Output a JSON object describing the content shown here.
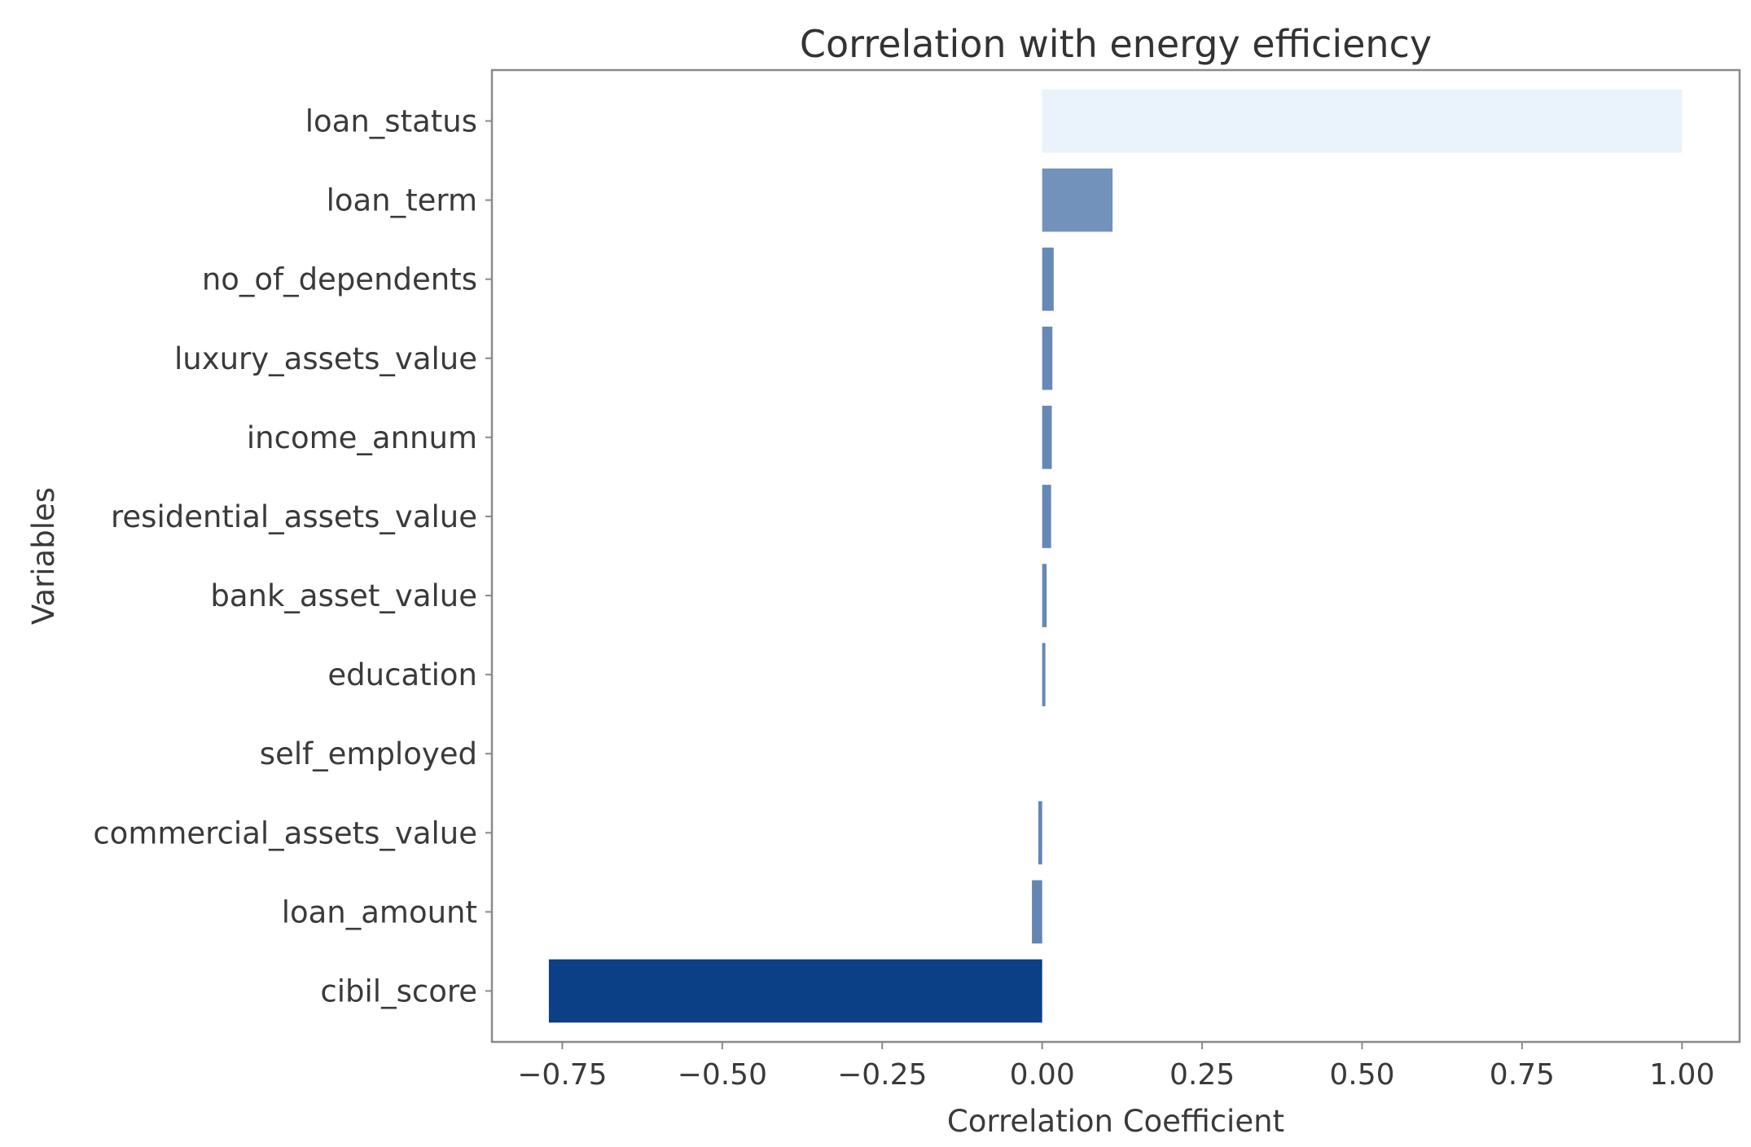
{
  "chart_data": {
    "type": "bar",
    "orientation": "horizontal",
    "title": "Correlation with energy efficiency",
    "xlabel": "Correlation Coefficient",
    "ylabel": "Variables",
    "categories": [
      "loan_status",
      "loan_term",
      "no_of_dependents",
      "luxury_assets_value",
      "income_annum",
      "residential_assets_value",
      "bank_asset_value",
      "education",
      "self_employed",
      "commercial_assets_value",
      "loan_amount",
      "cibil_score"
    ],
    "values": [
      1.0,
      0.11,
      0.018,
      0.016,
      0.015,
      0.014,
      0.007,
      0.005,
      0.0,
      -0.006,
      -0.016,
      -0.771
    ],
    "xlim": [
      -0.86,
      1.09
    ],
    "xticks": [
      -0.75,
      -0.5,
      -0.25,
      0.0,
      0.25,
      0.5,
      0.75,
      1.0
    ],
    "xtick_labels": [
      "−0.75",
      "−0.50",
      "−0.25",
      "0.00",
      "0.25",
      "0.50",
      "0.75",
      "1.00"
    ],
    "colormap": "Blues (darker for more negative, lighter for more positive)",
    "color_light": "#eaf2fb",
    "color_dark": "#0b3f86",
    "grid": false,
    "legend": "none"
  }
}
